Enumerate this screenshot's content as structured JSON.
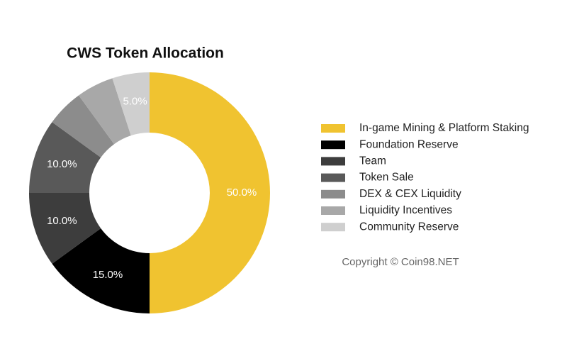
{
  "chart_data": {
    "type": "donut",
    "title": "CWS Token Allocation",
    "categories": [
      "In-game Mining & Platform Staking",
      "Foundation Reserve",
      "Team",
      "Token Sale",
      "DEX & CEX Liquidity",
      "Liquidity Incentives",
      "Community Reserve"
    ],
    "values": [
      50,
      15,
      10,
      10,
      5,
      5,
      5
    ],
    "value_labels": [
      "50.0%",
      "15.0%",
      "10.0%",
      "10.0%",
      null,
      null,
      "5.0%"
    ],
    "colors": [
      "#f0c330",
      "#000000",
      "#3d3d3d",
      "#595959",
      "#8c8c8c",
      "#a8a8a8",
      "#cfcfcf"
    ],
    "legend": "right"
  },
  "copyright": "Copyright © Coin98.NET"
}
